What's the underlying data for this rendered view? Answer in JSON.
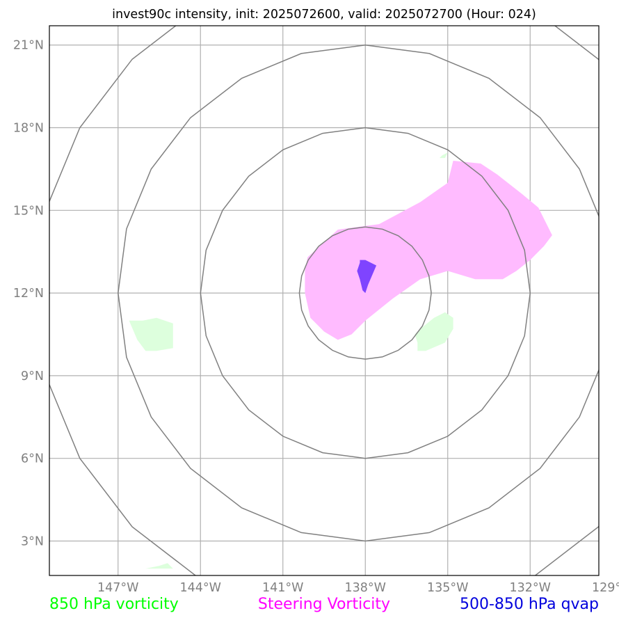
{
  "title": "invest90c intensity, init: 2025072600, valid: 2025072700 (Hour: 024)",
  "map": {
    "lon_range": [
      -149.5,
      -129.5
    ],
    "lat_range": [
      1.75,
      21.7
    ],
    "center": {
      "lon": -138,
      "lat": 12
    },
    "range_ring_radii_deg": [
      2.4,
      6.0,
      9.0,
      12.0
    ],
    "gridlines": true,
    "lon_ticks": [
      {
        "value": -147,
        "label": "147°W"
      },
      {
        "value": -144,
        "label": "144°W"
      },
      {
        "value": -141,
        "label": "141°W"
      },
      {
        "value": -138,
        "label": "138°W"
      },
      {
        "value": -135,
        "label": "135°W"
      },
      {
        "value": -132,
        "label": "132°W"
      },
      {
        "value": -129,
        "label": "129°W"
      }
    ],
    "lat_ticks": [
      {
        "value": 21,
        "label": "21°N"
      },
      {
        "value": 18,
        "label": "18°N"
      },
      {
        "value": 15,
        "label": "15°N"
      },
      {
        "value": 12,
        "label": "12°N"
      },
      {
        "value": 9,
        "label": "9°N"
      },
      {
        "value": 6,
        "label": "6°N"
      },
      {
        "value": 3,
        "label": "3°N"
      }
    ]
  },
  "colors": {
    "vort850": "#ddffdd",
    "steering": "#ffbbff",
    "qvap": "#7f44ff",
    "ring": "#808080",
    "grid": "#b0b0b0"
  },
  "fields": {
    "vort850": [
      [
        [
          -146.1,
          11.0
        ],
        [
          -145.6,
          11.1
        ],
        [
          -145.0,
          10.9
        ],
        [
          -145.0,
          10.0
        ],
        [
          -145.6,
          9.9
        ],
        [
          -146.0,
          9.9
        ],
        [
          -146.3,
          10.3
        ],
        [
          -146.6,
          11.0
        ]
      ],
      [
        [
          -135.0,
          17.1
        ],
        [
          -135.1,
          16.9
        ],
        [
          -135.3,
          16.9
        ],
        [
          -135.2,
          17.0
        ]
      ],
      [
        [
          -136.0,
          10.7
        ],
        [
          -135.5,
          11.1
        ],
        [
          -135.1,
          11.3
        ],
        [
          -134.8,
          11.1
        ],
        [
          -134.8,
          10.7
        ],
        [
          -135.1,
          10.2
        ],
        [
          -135.8,
          9.9
        ],
        [
          -136.1,
          9.9
        ],
        [
          -136.1,
          10.2
        ],
        [
          -136.2,
          10.5
        ]
      ],
      [
        [
          -146.0,
          2.0
        ],
        [
          -145.5,
          2.1
        ],
        [
          -145.2,
          2.2
        ],
        [
          -145.0,
          2.0
        ]
      ]
    ],
    "steering": [
      [
        [
          -140.1,
          13.3
        ],
        [
          -139.0,
          14.3
        ],
        [
          -137.5,
          14.5
        ],
        [
          -136.0,
          15.3
        ],
        [
          -135.0,
          16.0
        ],
        [
          -134.8,
          16.8
        ],
        [
          -133.8,
          16.7
        ],
        [
          -133.2,
          16.3
        ],
        [
          -132.3,
          15.6
        ],
        [
          -131.7,
          15.1
        ],
        [
          -131.2,
          14.1
        ],
        [
          -131.5,
          13.7
        ],
        [
          -132.0,
          13.2
        ],
        [
          -132.5,
          12.8
        ],
        [
          -133.0,
          12.5
        ],
        [
          -134.0,
          12.5
        ],
        [
          -135.0,
          12.8
        ],
        [
          -136.0,
          12.5
        ],
        [
          -137.0,
          11.8
        ],
        [
          -138.0,
          11.0
        ],
        [
          -138.5,
          10.5
        ],
        [
          -139.0,
          10.3
        ],
        [
          -139.5,
          10.6
        ],
        [
          -140.0,
          11.1
        ],
        [
          -140.2,
          12.0
        ],
        [
          -140.2,
          12.8
        ]
      ]
    ],
    "qvap": [
      [
        [
          -138.2,
          13.2
        ],
        [
          -138.0,
          13.2
        ],
        [
          -137.6,
          13.0
        ],
        [
          -137.9,
          12.3
        ],
        [
          -138.0,
          12.0
        ],
        [
          -138.1,
          12.1
        ],
        [
          -138.2,
          12.5
        ],
        [
          -138.3,
          12.8
        ],
        [
          -138.2,
          13.1
        ]
      ]
    ]
  },
  "legend": [
    {
      "label": "850 hPa vorticity",
      "color": "#00ff00"
    },
    {
      "label": "Steering Vorticity",
      "color": "#ff00ff"
    },
    {
      "label": "500-850 hPa qvap",
      "color": "#0000dd"
    }
  ]
}
